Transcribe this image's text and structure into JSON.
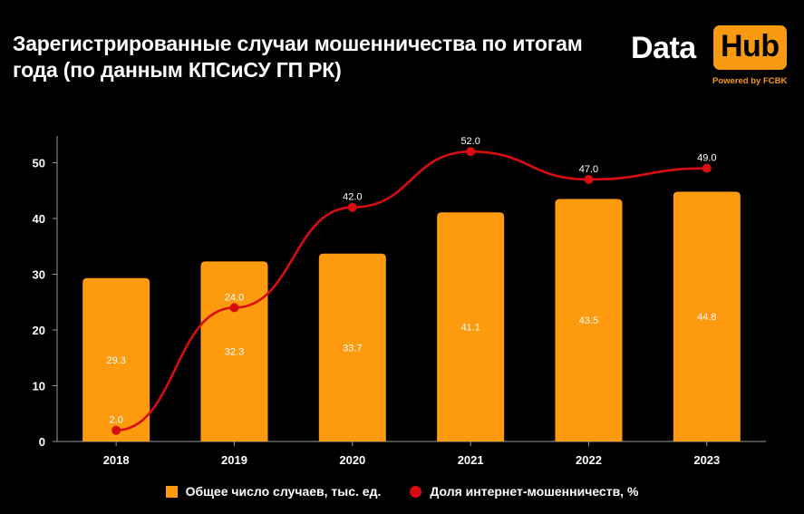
{
  "title": "Зарегистрированные случаи мошенничества по итогам\nгода (по данным КПСиСУ ГП РК)",
  "logo": {
    "data_text": "Data",
    "hub_text": "Hub",
    "powered_text": "Powered by FCBK"
  },
  "colors": {
    "bar": "#fd9a0e",
    "line": "#d80d12",
    "background": "#000000",
    "text": "#ffffff"
  },
  "chart_data": {
    "type": "bar",
    "categories": [
      "2018",
      "2019",
      "2020",
      "2021",
      "2022",
      "2023"
    ],
    "series": [
      {
        "name": "Общее число случаев, тыс. ед.",
        "type": "bar",
        "values": [
          29.3,
          32.3,
          33.7,
          41.1,
          43.5,
          44.8
        ]
      },
      {
        "name": "Доля интернет-мошенничеств, %",
        "type": "line",
        "values": [
          2.0,
          24.0,
          42.0,
          52.0,
          47.0,
          49.0
        ]
      }
    ],
    "yticks": [
      0,
      10,
      20,
      30,
      40,
      50
    ],
    "ylim": [
      0,
      55
    ],
    "grid": false,
    "legend_position": "bottom",
    "xlabel": "",
    "ylabel": ""
  }
}
